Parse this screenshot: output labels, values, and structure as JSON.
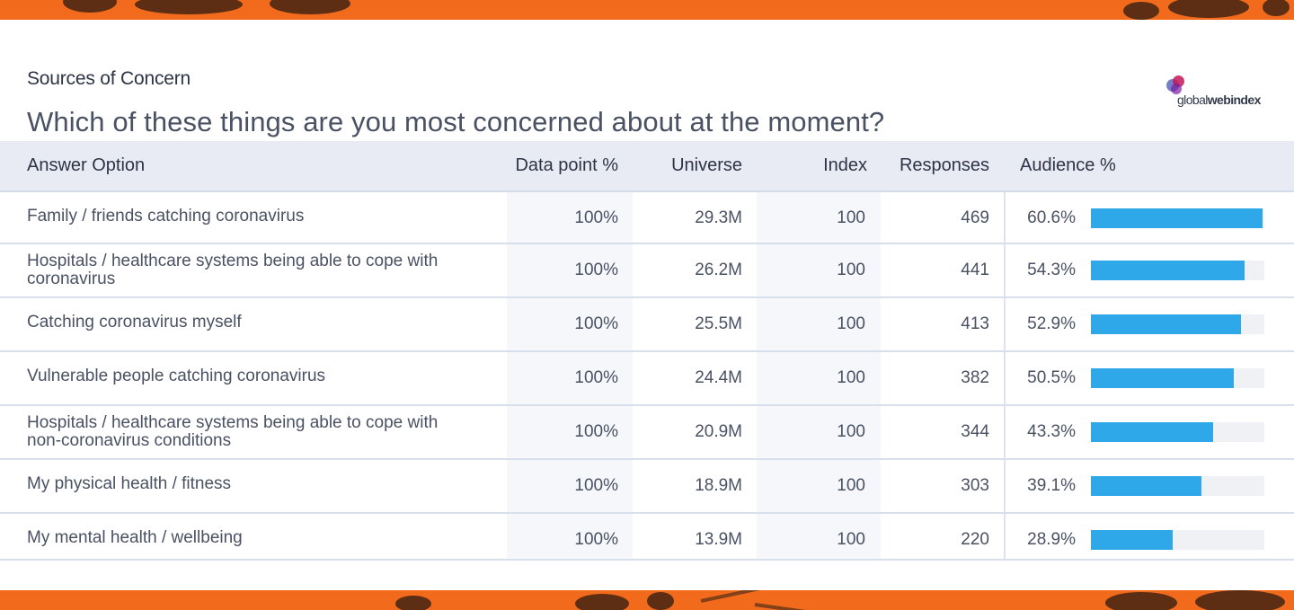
{
  "header": {
    "eyebrow": "Sources of Concern",
    "question": "Which of these things are you most concerned about at the moment?"
  },
  "logo": {
    "text_light": "global",
    "text_bold": "webindex",
    "colors": [
      "#c2185b",
      "#3f51b5",
      "#9c27b0"
    ]
  },
  "table": {
    "columns": [
      "Answer Option",
      "Data point %",
      "Universe",
      "Index",
      "Responses",
      "Audience %"
    ],
    "rows": [
      {
        "label": "Family / friends catching coronavirus",
        "data_point": "100%",
        "universe": "29.3M",
        "index": "100",
        "responses": "469",
        "audience": "60.6%",
        "audience_value": 60.6
      },
      {
        "label": "Hospitals / healthcare systems being able to cope with coronavirus",
        "data_point": "100%",
        "universe": "26.2M",
        "index": "100",
        "responses": "441",
        "audience": "54.3%",
        "audience_value": 54.3
      },
      {
        "label": "Catching coronavirus myself",
        "data_point": "100%",
        "universe": "25.5M",
        "index": "100",
        "responses": "413",
        "audience": "52.9%",
        "audience_value": 52.9
      },
      {
        "label": "Vulnerable people catching coronavirus",
        "data_point": "100%",
        "universe": "24.4M",
        "index": "100",
        "responses": "382",
        "audience": "50.5%",
        "audience_value": 50.5
      },
      {
        "label": "Hospitals / healthcare systems being able to cope with non-coronavirus conditions",
        "data_point": "100%",
        "universe": "20.9M",
        "index": "100",
        "responses": "344",
        "audience": "43.3%",
        "audience_value": 43.3
      },
      {
        "label": "My physical health / fitness",
        "data_point": "100%",
        "universe": "18.9M",
        "index": "100",
        "responses": "303",
        "audience": "39.1%",
        "audience_value": 39.1
      },
      {
        "label": "My mental health / wellbeing",
        "data_point": "100%",
        "universe": "13.9M",
        "index": "100",
        "responses": "220",
        "audience": "28.9%",
        "audience_value": 28.9
      }
    ]
  },
  "colors": {
    "accent_band": "#f26b1d",
    "bar": "#2ea8e8",
    "header_bg": "#e8ebf3"
  }
}
